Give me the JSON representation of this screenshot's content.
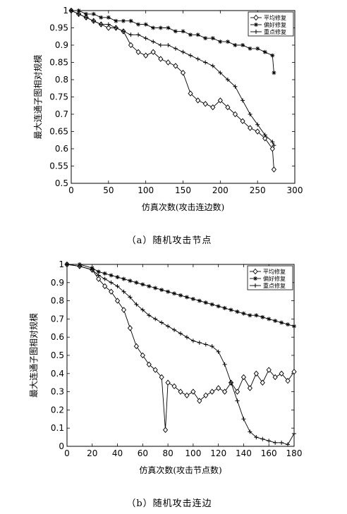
{
  "chart_data": [
    {
      "type": "line",
      "xlabel": "仿真次数(攻击连边数)",
      "ylabel": "最大连通子图相对规模",
      "caption": "（a）随机攻击节点",
      "xlim": [
        0,
        300
      ],
      "ylim": [
        0.5,
        1
      ],
      "xticks": [
        0,
        50,
        100,
        150,
        200,
        250,
        300
      ],
      "yticks": [
        0.5,
        0.55,
        0.6,
        0.65,
        0.7,
        0.75,
        0.8,
        0.85,
        0.9,
        0.95,
        1
      ],
      "legend_position": "top-right",
      "series": [
        {
          "name": "平均修复",
          "marker": "diamond",
          "x": [
            0,
            10,
            20,
            30,
            40,
            50,
            60,
            70,
            80,
            90,
            100,
            110,
            120,
            130,
            140,
            150,
            160,
            170,
            180,
            190,
            200,
            210,
            220,
            230,
            240,
            250,
            260,
            270,
            272
          ],
          "y": [
            1,
            0.99,
            0.98,
            0.97,
            0.96,
            0.95,
            0.95,
            0.94,
            0.9,
            0.88,
            0.87,
            0.88,
            0.86,
            0.85,
            0.84,
            0.82,
            0.76,
            0.74,
            0.73,
            0.72,
            0.74,
            0.72,
            0.7,
            0.68,
            0.66,
            0.65,
            0.63,
            0.6,
            0.54
          ]
        },
        {
          "name": "偏好修复",
          "marker": "star",
          "x": [
            0,
            10,
            20,
            30,
            40,
            50,
            60,
            70,
            80,
            90,
            100,
            110,
            120,
            130,
            140,
            150,
            160,
            170,
            180,
            190,
            200,
            210,
            220,
            230,
            240,
            250,
            260,
            270,
            272
          ],
          "y": [
            1,
            1,
            0.99,
            0.99,
            0.98,
            0.98,
            0.97,
            0.97,
            0.97,
            0.96,
            0.96,
            0.95,
            0.95,
            0.95,
            0.94,
            0.94,
            0.93,
            0.93,
            0.92,
            0.92,
            0.91,
            0.91,
            0.9,
            0.9,
            0.89,
            0.89,
            0.88,
            0.87,
            0.82
          ]
        },
        {
          "name": "重点修复",
          "marker": "plus",
          "x": [
            0,
            10,
            20,
            30,
            40,
            50,
            60,
            70,
            80,
            90,
            100,
            110,
            120,
            130,
            140,
            150,
            160,
            170,
            180,
            190,
            200,
            210,
            220,
            230,
            240,
            250,
            260,
            270,
            272
          ],
          "y": [
            1,
            0.99,
            0.98,
            0.97,
            0.96,
            0.96,
            0.95,
            0.94,
            0.93,
            0.93,
            0.92,
            0.91,
            0.9,
            0.9,
            0.89,
            0.88,
            0.87,
            0.86,
            0.85,
            0.84,
            0.82,
            0.8,
            0.78,
            0.74,
            0.7,
            0.67,
            0.64,
            0.62,
            0.61
          ]
        }
      ]
    },
    {
      "type": "line",
      "xlabel": "仿真次数(攻击节点数)",
      "ylabel": "最大连通子图相对规模",
      "caption": "（b）随机攻击连边",
      "xlim": [
        0,
        180
      ],
      "ylim": [
        0,
        1
      ],
      "xticks": [
        0,
        20,
        40,
        60,
        80,
        100,
        120,
        140,
        160,
        180
      ],
      "yticks": [
        0,
        0.1,
        0.2,
        0.3,
        0.4,
        0.5,
        0.6,
        0.7,
        0.8,
        0.9,
        1
      ],
      "legend_position": "top-right",
      "series": [
        {
          "name": "平均修复",
          "marker": "diamond",
          "x": [
            0,
            10,
            20,
            25,
            30,
            35,
            40,
            45,
            50,
            55,
            60,
            65,
            70,
            75,
            78,
            80,
            85,
            90,
            95,
            100,
            105,
            110,
            115,
            120,
            125,
            130,
            135,
            140,
            145,
            150,
            155,
            160,
            165,
            170,
            175,
            180
          ],
          "y": [
            1,
            0.99,
            0.97,
            0.92,
            0.88,
            0.85,
            0.8,
            0.75,
            0.65,
            0.55,
            0.5,
            0.45,
            0.42,
            0.38,
            0.09,
            0.35,
            0.33,
            0.3,
            0.28,
            0.3,
            0.25,
            0.28,
            0.3,
            0.32,
            0.3,
            0.35,
            0.3,
            0.38,
            0.32,
            0.4,
            0.35,
            0.42,
            0.38,
            0.4,
            0.36,
            0.41
          ]
        },
        {
          "name": "偏好修复",
          "marker": "star",
          "x": [
            0,
            10,
            20,
            25,
            30,
            35,
            40,
            45,
            50,
            55,
            60,
            65,
            70,
            75,
            80,
            85,
            90,
            95,
            100,
            105,
            110,
            115,
            120,
            125,
            130,
            135,
            140,
            145,
            150,
            155,
            160,
            165,
            170,
            175,
            180
          ],
          "y": [
            1,
            1,
            0.98,
            0.96,
            0.95,
            0.94,
            0.93,
            0.92,
            0.91,
            0.9,
            0.89,
            0.88,
            0.87,
            0.86,
            0.85,
            0.84,
            0.83,
            0.82,
            0.81,
            0.8,
            0.79,
            0.78,
            0.77,
            0.76,
            0.75,
            0.74,
            0.73,
            0.72,
            0.72,
            0.71,
            0.7,
            0.69,
            0.68,
            0.67,
            0.66
          ]
        },
        {
          "name": "重点修复",
          "marker": "plus",
          "x": [
            0,
            10,
            20,
            25,
            30,
            35,
            40,
            45,
            50,
            55,
            60,
            65,
            70,
            75,
            80,
            85,
            90,
            95,
            100,
            105,
            110,
            115,
            120,
            125,
            130,
            135,
            140,
            145,
            150,
            155,
            160,
            165,
            170,
            175,
            180
          ],
          "y": [
            1,
            0.99,
            0.97,
            0.94,
            0.92,
            0.9,
            0.88,
            0.85,
            0.82,
            0.78,
            0.75,
            0.72,
            0.7,
            0.68,
            0.66,
            0.64,
            0.62,
            0.6,
            0.58,
            0.57,
            0.56,
            0.55,
            0.52,
            0.45,
            0.35,
            0.25,
            0.15,
            0.08,
            0.05,
            0.04,
            0.03,
            0.02,
            0.02,
            0.01,
            0.07
          ]
        }
      ]
    }
  ]
}
